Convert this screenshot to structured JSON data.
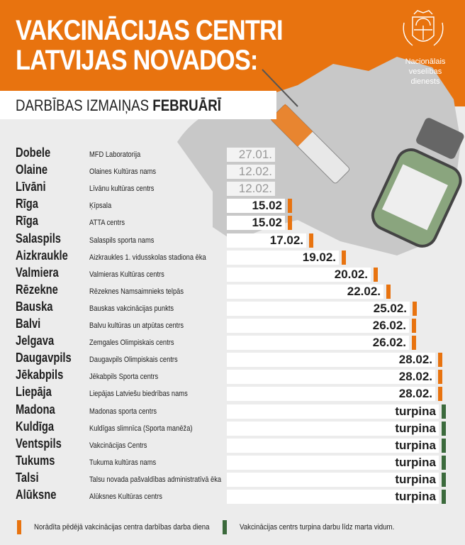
{
  "header": {
    "title_line1": "VAKCINĀCIJAS CENTRI",
    "title_line2": "LATVIJAS NOVADOS:",
    "subtitle_plain": "DARBĪBAS IZMAIŅAS ",
    "subtitle_bold": "FEBRUĀRĪ",
    "org_name_line1": "Nacionālais veselības",
    "org_name_line2": "dienests"
  },
  "colors": {
    "orange": "#e8730f",
    "green": "#3b6a3c",
    "gray": "#c4c4c4"
  },
  "rows": [
    {
      "city": "Dobele",
      "place": "MFD Laboratorija",
      "date": "27.01.",
      "status": "past"
    },
    {
      "city": "Olaine",
      "place": "Olaines Kultūras nams",
      "date": "12.02.",
      "status": "past"
    },
    {
      "city": "Līvāni",
      "place": "Līvānu kultūras centrs",
      "date": "12.02.",
      "status": "past"
    },
    {
      "city": "Rīga",
      "place": "Ķīpsala",
      "date": "15.02",
      "status": "last-day"
    },
    {
      "city": "Rīga",
      "place": "ATTA centrs",
      "date": "15.02",
      "status": "last-day"
    },
    {
      "city": "Salaspils",
      "place": "Salaspils sporta nams",
      "date": "17.02.",
      "status": "last-day"
    },
    {
      "city": "Aizkraukle",
      "place": "Aizkraukles 1. vidusskolas stadiona ēka",
      "date": "19.02.",
      "status": "last-day"
    },
    {
      "city": "Valmiera",
      "place": "Valmieras Kultūras centrs",
      "date": "20.02.",
      "status": "last-day"
    },
    {
      "city": "Rēzekne",
      "place": "Rēzeknes Namsaimnieks telpās",
      "date": "22.02.",
      "status": "last-day"
    },
    {
      "city": "Bauska",
      "place": "Bauskas vakcinācijas punkts",
      "date": "25.02.",
      "status": "last-day"
    },
    {
      "city": "Balvi",
      "place": "Balvu kultūras un atpūtas centrs",
      "date": "26.02.",
      "status": "last-day"
    },
    {
      "city": "Jelgava",
      "place": "Zemgales Olimpiskais centrs",
      "date": "26.02.",
      "status": "last-day"
    },
    {
      "city": "Daugavpils",
      "place": "Daugavpils Olimpiskais centrs",
      "date": "28.02.",
      "status": "last-day"
    },
    {
      "city": "Jēkabpils",
      "place": "Jēkabpils Sporta centrs",
      "date": "28.02.",
      "status": "last-day"
    },
    {
      "city": "Liepāja",
      "place": "Liepājas Latviešu biedrības nams",
      "date": "28.02.",
      "status": "last-day"
    },
    {
      "city": "Madona",
      "place": "Madonas sporta centrs",
      "date": "turpina",
      "status": "continues"
    },
    {
      "city": "Kuldīga",
      "place": "Kuldīgas slimnīca (Sporta manēža)",
      "date": "turpina",
      "status": "continues"
    },
    {
      "city": "Ventspils",
      "place": "Vakcinācijas Centrs",
      "date": "turpina",
      "status": "continues"
    },
    {
      "city": "Tukums",
      "place": "Tukuma kultūras nams",
      "date": "turpina",
      "status": "continues"
    },
    {
      "city": "Talsi",
      "place": "Talsu novada pašvaldības administratīvā ēka",
      "date": "turpina",
      "status": "continues"
    },
    {
      "city": "Alūksne",
      "place": "Alūksnes Kultūras centrs",
      "date": "turpina",
      "status": "continues"
    }
  ],
  "legend": {
    "orange_label": "Norādīta pēdējā vakcinācijas centra darbības darba diena",
    "green_label": "Vakcinācijas centrs turpina darbu līdz marta vidum."
  }
}
